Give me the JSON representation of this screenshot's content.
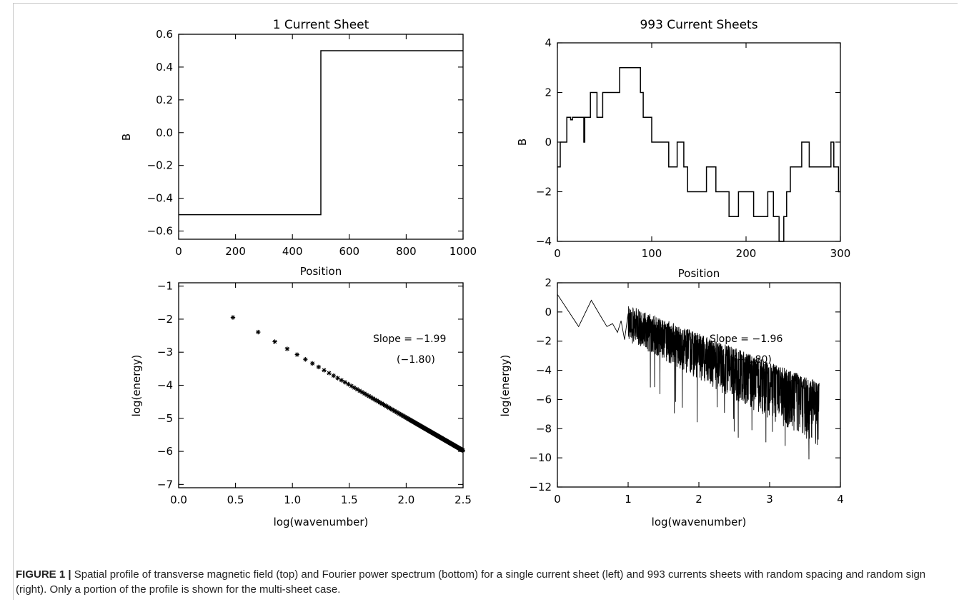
{
  "caption": {
    "label": "FIGURE 1 |",
    "text": "Spatial profile of transverse magnetic field (top) and Fourier power spectrum (bottom) for a single current sheet (left) and 993 currents sheets with random spacing and random sign (right). Only a portion of the profile is shown for the multi-sheet case."
  },
  "chart_data": [
    {
      "type": "line",
      "title": "1 Current Sheet",
      "xlabel": "Position",
      "ylabel": "B",
      "xlim": [
        0,
        1000
      ],
      "ylim": [
        -0.65,
        0.6
      ],
      "xticks": [
        0,
        200,
        400,
        600,
        800,
        1000
      ],
      "yticks": [
        0.6,
        0.4,
        0.2,
        0.0,
        -0.2,
        -0.4,
        -0.6
      ],
      "ytick_labels": [
        "0.6",
        "0.4",
        "0.2",
        "0.0",
        "-0.2",
        "-0.4",
        "-0.6"
      ],
      "series": [
        {
          "x": [
            0,
            500,
            500,
            1000
          ],
          "y": [
            -0.5,
            -0.5,
            0.5,
            0.5
          ]
        }
      ]
    },
    {
      "type": "line",
      "title": "993 Current Sheets",
      "xlabel": "Position",
      "ylabel": "B",
      "xlim": [
        0,
        300
      ],
      "ylim": [
        -4,
        4
      ],
      "xticks": [
        0,
        100,
        200,
        300
      ],
      "yticks": [
        4,
        2,
        0,
        -2,
        -4
      ],
      "ytick_labels": [
        "4",
        "2",
        "0",
        "-2",
        "-4"
      ],
      "series": [
        {
          "x": [
            0,
            3,
            3,
            10,
            10,
            14,
            14,
            16,
            16,
            20,
            20,
            28,
            28,
            29,
            29,
            30,
            30,
            35,
            35,
            42,
            42,
            48,
            48,
            55,
            55,
            66,
            66,
            74,
            74,
            88,
            88,
            91,
            91,
            94,
            94,
            100,
            100,
            110,
            110,
            118,
            118,
            127,
            127,
            134,
            134,
            138,
            138,
            146,
            146,
            158,
            158,
            168,
            168,
            172,
            172,
            182,
            182,
            192,
            192,
            198,
            198,
            208,
            208,
            213,
            213,
            223,
            223,
            229,
            229,
            235,
            235,
            240,
            240,
            243,
            243,
            247,
            247,
            259,
            259,
            267,
            267,
            282,
            282,
            290,
            290,
            293,
            293,
            298,
            298,
            300
          ],
          "y": [
            -1,
            -1,
            0,
            0,
            1,
            1,
            0.9,
            0.9,
            1,
            1,
            1,
            1,
            0,
            0,
            1,
            1,
            1,
            1,
            2,
            2,
            1,
            1,
            2,
            2,
            2,
            2,
            3,
            3,
            3,
            3,
            2,
            2,
            1,
            1,
            1,
            1,
            0,
            0,
            0,
            0,
            -1,
            -1,
            0,
            0,
            -1,
            -1,
            -2,
            -2,
            -2,
            -2,
            -1,
            -1,
            -2,
            -2,
            -2,
            -2,
            -3,
            -3,
            -2,
            -2,
            -2,
            -2,
            -3,
            -3,
            -3,
            -3,
            -2,
            -2,
            -3,
            -3,
            -4,
            -4,
            -3,
            -3,
            -2,
            -2,
            -1,
            -1,
            0,
            0,
            -1,
            -1,
            -1,
            -1,
            0,
            0,
            -1,
            -1,
            -2,
            -2
          ]
        }
      ]
    },
    {
      "type": "scatter",
      "xlabel": "log(wavenumber)",
      "ylabel": "log(energy)",
      "xlim": [
        0.0,
        2.5
      ],
      "ylim": [
        -7.1,
        -0.9
      ],
      "xticks": [
        0.0,
        0.5,
        1.0,
        1.5,
        2.0,
        2.5
      ],
      "xtick_labels": [
        "0.0",
        "0.5",
        "1.0",
        "1.5",
        "2.0",
        "2.5"
      ],
      "yticks": [
        -1,
        -2,
        -3,
        -4,
        -5,
        -6,
        -7
      ],
      "ytick_labels": [
        "-1",
        "-2",
        "-3",
        "-4",
        "-5",
        "-6",
        "-7"
      ],
      "annotations": [
        "Slope = -1.99",
        "(-1.80)"
      ],
      "marker": "asterisk",
      "points_note": "odd wavenumbers k = 3, 5, 7, ...; y approx -1.99*log10(k) + (-1.0)",
      "series": [
        {
          "x_start": 0.477,
          "x_end": 2.5,
          "slope": -1.99,
          "intercept": -1.0
        }
      ]
    },
    {
      "type": "line",
      "xlabel": "log(wavenumber)",
      "ylabel": "log(energy)",
      "xlim": [
        0,
        4
      ],
      "ylim": [
        -12,
        2
      ],
      "xticks": [
        0,
        1,
        2,
        3,
        4
      ],
      "yticks": [
        2,
        0,
        -2,
        -4,
        -6,
        -8,
        -10,
        -12
      ],
      "ytick_labels": [
        "2",
        "0",
        "-2",
        "-4",
        "-6",
        "-8",
        "-10",
        "-12"
      ],
      "annotations": [
        "Slope = -1.96",
        "(-1.80)"
      ],
      "series": [
        {
          "x": [
            0,
            0.3,
            0.48,
            0.6,
            0.7,
            0.78,
            0.85,
            0.9,
            0.95,
            1.0
          ],
          "y": [
            1.2,
            -1.0,
            0.8,
            -0.2,
            -1.0,
            -0.8,
            -1.4,
            -0.6,
            -1.9,
            -0.1
          ],
          "noisy_trend_from_x": 1.0,
          "noisy_trend_to_x": 3.7,
          "trend_slope": -1.96,
          "trend_at_x1": -0.8
        }
      ]
    }
  ]
}
